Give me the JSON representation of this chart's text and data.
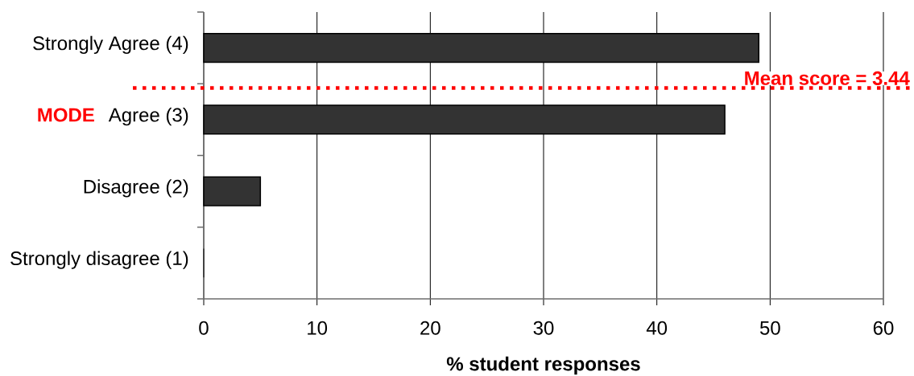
{
  "chart_data": {
    "type": "bar",
    "orientation": "horizontal",
    "x": [
      4,
      3,
      2,
      1
    ],
    "values": [
      49,
      46,
      5,
      0
    ],
    "color": "#333333",
    "xlabel": "% student responses",
    "xlim": [
      0,
      60
    ],
    "xticks": [
      0,
      10,
      20,
      30,
      40,
      50,
      60
    ],
    "ylim": [
      0.5,
      4.5
    ],
    "yticks": [
      {
        "value": 0.5,
        "label": null
      },
      {
        "value": 1,
        "label": "Strongly disagree (1)"
      },
      {
        "value": 1.5,
        "label": null
      },
      {
        "value": 2,
        "label": "Disagree (2)"
      },
      {
        "value": 2.5,
        "label": null
      },
      {
        "value": 3,
        "label": "Agree (3)"
      },
      {
        "value": 3.5,
        "label": null
      },
      {
        "value": 4,
        "label": "Strongly Agree (4)"
      },
      {
        "value": 4.5,
        "label": null
      }
    ],
    "grid": "x",
    "ref_lines": [
      {
        "axis": "y",
        "value": 3.44,
        "label": "Mean score = 3.44",
        "color": "#ff0000",
        "line_style": "dotted"
      }
    ],
    "annotations": [
      "MODE"
    ]
  }
}
